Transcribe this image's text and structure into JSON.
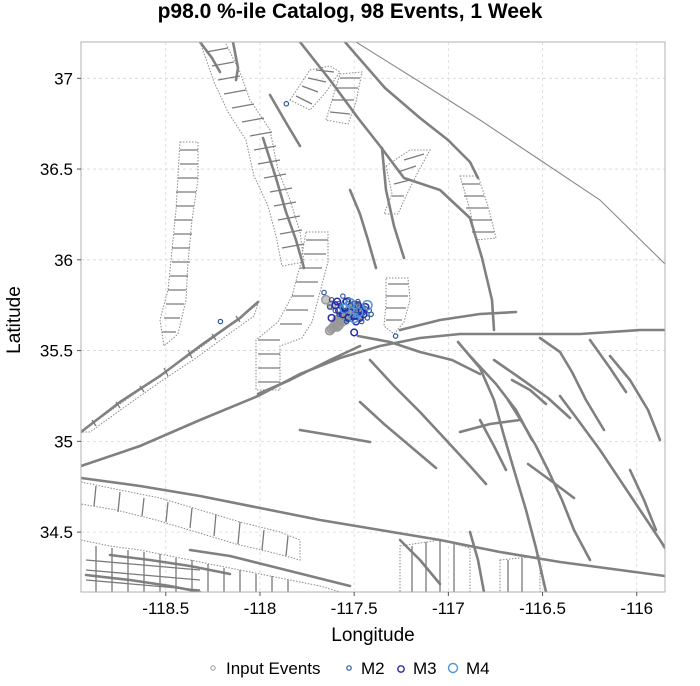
{
  "chart_data": {
    "type": "scatter",
    "title": "p98.0 %-ile Catalog, 98 Events, 1 Week",
    "xlabel": "Longitude",
    "ylabel": "Latitude",
    "xlim": [
      -118.95,
      -115.85
    ],
    "ylim": [
      34.17,
      37.2
    ],
    "x_ticks": [
      -118.5,
      -118,
      -117.5,
      -117,
      -116.5,
      -116
    ],
    "y_ticks": [
      34.5,
      35,
      35.5,
      36,
      36.5,
      37
    ],
    "grid": true,
    "legend_position": "bottom",
    "legend": [
      "Input Events",
      "M2",
      "M3",
      "M4"
    ],
    "colors": {
      "input": "#999999",
      "m2": "#2c5aa0",
      "m3": "#2a2aa8",
      "m4": "#4f96d8",
      "faults": "#808080",
      "grid": "#d8d8d8"
    },
    "series": [
      {
        "name": "Input Events",
        "points": [
          [
            -117.6,
            35.65
          ],
          [
            -117.61,
            35.63
          ],
          [
            -117.59,
            35.67
          ],
          [
            -117.57,
            35.69
          ],
          [
            -117.55,
            35.7
          ],
          [
            -117.53,
            35.72
          ],
          [
            -117.51,
            35.74
          ],
          [
            -117.58,
            35.66
          ],
          [
            -117.56,
            35.68
          ],
          [
            -117.54,
            35.71
          ],
          [
            -117.52,
            35.73
          ],
          [
            -117.5,
            35.75
          ],
          [
            -117.62,
            35.62
          ],
          [
            -117.6,
            35.64
          ],
          [
            -117.57,
            35.67
          ],
          [
            -117.55,
            35.69
          ],
          [
            -117.53,
            35.7
          ],
          [
            -117.49,
            35.73
          ],
          [
            -117.47,
            35.7
          ],
          [
            -117.59,
            35.63
          ],
          [
            -117.56,
            35.66
          ],
          [
            -117.54,
            35.68
          ],
          [
            -117.52,
            35.7
          ],
          [
            -117.5,
            35.72
          ],
          [
            -117.63,
            35.61
          ],
          [
            -117.58,
            35.64
          ],
          [
            -117.51,
            35.71
          ],
          [
            -117.48,
            35.72
          ],
          [
            -117.46,
            35.73
          ],
          [
            -117.65,
            35.78
          ],
          [
            -117.62,
            35.75
          ]
        ]
      },
      {
        "name": "M2",
        "points": [
          [
            -117.86,
            36.86
          ],
          [
            -118.21,
            35.66
          ],
          [
            -117.28,
            35.58
          ],
          [
            -117.66,
            35.82
          ],
          [
            -117.62,
            35.78
          ],
          [
            -117.58,
            35.76
          ],
          [
            -117.56,
            35.8
          ],
          [
            -117.53,
            35.78
          ],
          [
            -117.5,
            35.76
          ],
          [
            -117.47,
            35.74
          ],
          [
            -117.44,
            35.73
          ],
          [
            -117.42,
            35.72
          ],
          [
            -117.54,
            35.66
          ],
          [
            -117.51,
            35.69
          ],
          [
            -117.49,
            35.7
          ],
          [
            -117.45,
            35.71
          ],
          [
            -117.6,
            35.72
          ],
          [
            -117.57,
            35.74
          ],
          [
            -117.55,
            35.72
          ],
          [
            -117.52,
            35.75
          ],
          [
            -117.43,
            35.68
          ],
          [
            -117.46,
            35.66
          ],
          [
            -117.58,
            35.7
          ],
          [
            -117.63,
            35.74
          ],
          [
            -117.48,
            35.77
          ],
          [
            -117.41,
            35.7
          ],
          [
            -117.55,
            35.77
          ],
          [
            -117.5,
            35.73
          ]
        ]
      },
      {
        "name": "M3",
        "points": [
          [
            -117.58,
            35.72
          ],
          [
            -117.55,
            35.74
          ],
          [
            -117.52,
            35.71
          ],
          [
            -117.5,
            35.69
          ],
          [
            -117.47,
            35.68
          ],
          [
            -117.54,
            35.77
          ],
          [
            -117.6,
            35.75
          ],
          [
            -117.45,
            35.7
          ],
          [
            -117.49,
            35.66
          ],
          [
            -117.5,
            35.6
          ],
          [
            -117.62,
            35.68
          ],
          [
            -117.44,
            35.74
          ],
          [
            -117.56,
            35.7
          ],
          [
            -117.48,
            35.75
          ],
          [
            -117.53,
            35.68
          ],
          [
            -117.59,
            35.77
          ],
          [
            -117.46,
            35.72
          ]
        ]
      },
      {
        "name": "M4",
        "points": [
          [
            -117.55,
            35.73
          ],
          [
            -117.52,
            35.76
          ],
          [
            -117.48,
            35.71
          ],
          [
            -117.5,
            35.68
          ],
          [
            -117.43,
            35.75
          ]
        ]
      }
    ]
  }
}
